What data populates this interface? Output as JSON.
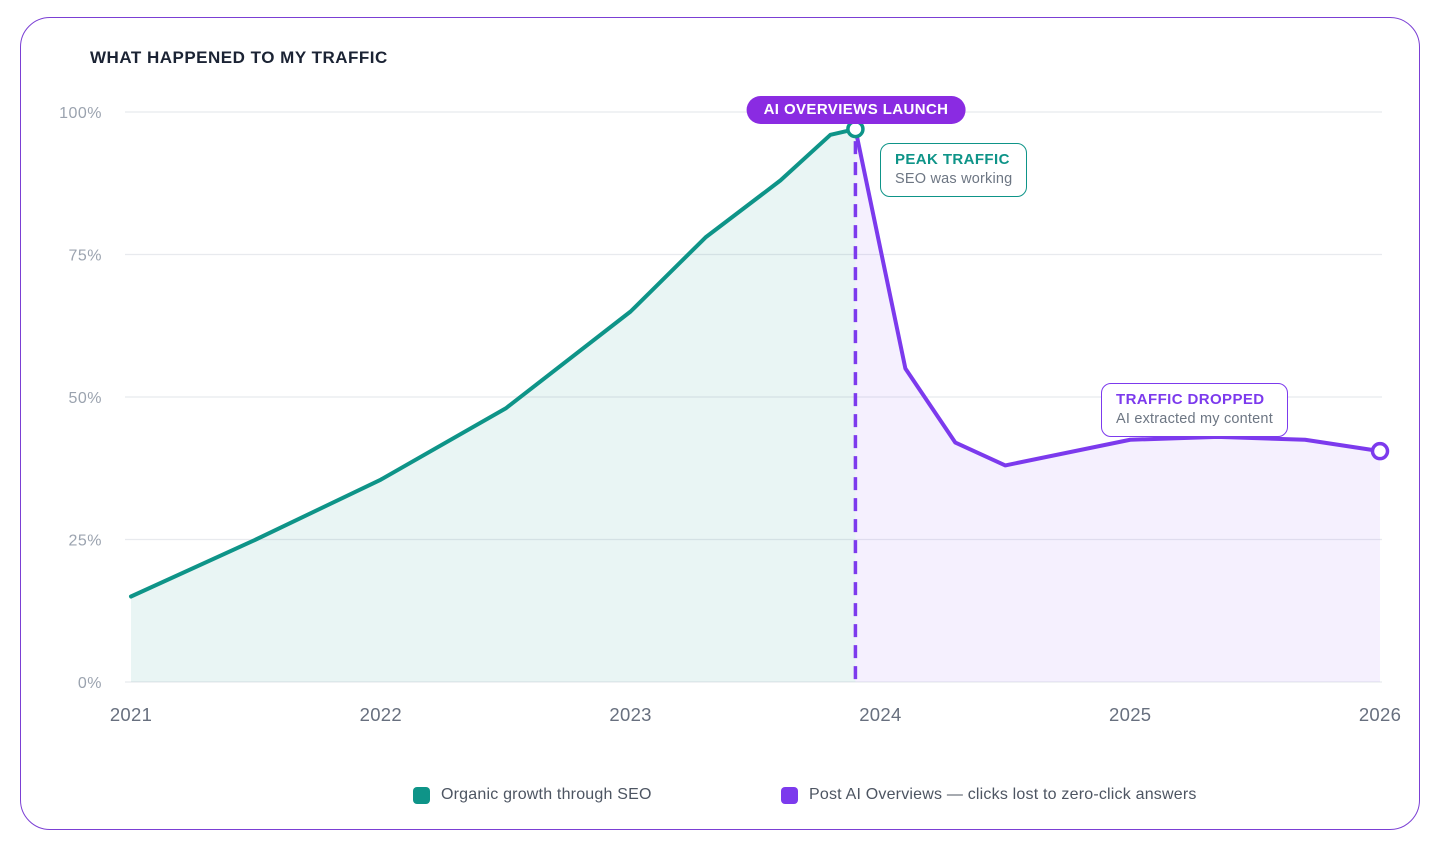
{
  "header": {
    "title": "WHAT HAPPENED TO MY TRAFFIC"
  },
  "badge": {
    "label": "AI OVERVIEWS LAUNCH"
  },
  "peak_note": {
    "title": "PEAK TRAFFIC",
    "subtitle": "SEO was working"
  },
  "drop_note": {
    "title": "TRAFFIC DROPPED",
    "subtitle": "AI extracted my content"
  },
  "legend": {
    "items": [
      {
        "label": "Organic growth through SEO",
        "color": "#0e9488"
      },
      {
        "label": "Post AI Overviews — clicks lost to zero-click answers",
        "color": "#7c3aed"
      }
    ]
  },
  "chart_data": {
    "type": "area",
    "title": "WHAT HAPPENED TO MY TRAFFIC",
    "xlabel": "",
    "ylabel": "",
    "x_ticks": [
      2021,
      2022,
      2023,
      2024,
      2025,
      2026
    ],
    "y_ticks": [
      0,
      25,
      50,
      75,
      100
    ],
    "y_tick_labels": [
      "0%",
      "25%",
      "50%",
      "75%",
      "100%"
    ],
    "xlim": [
      2021,
      2026
    ],
    "ylim": [
      0,
      100
    ],
    "grid": true,
    "unit": "%",
    "series": [
      {
        "name": "Organic growth through SEO",
        "color": "#0e9488",
        "fill": "rgba(14,148,136,0.09)",
        "points": [
          [
            2021.0,
            15
          ],
          [
            2021.5,
            25
          ],
          [
            2022.0,
            35.5
          ],
          [
            2022.5,
            48
          ],
          [
            2023.0,
            65
          ],
          [
            2023.3,
            78
          ],
          [
            2023.6,
            88
          ],
          [
            2023.8,
            96
          ],
          [
            2023.9,
            97
          ]
        ],
        "end_marker": true
      },
      {
        "name": "Post AI Overviews — clicks lost to zero-click answers",
        "color": "#7c3aed",
        "fill": "rgba(124,58,237,0.08)",
        "points": [
          [
            2023.9,
            97
          ],
          [
            2024.1,
            55
          ],
          [
            2024.3,
            42
          ],
          [
            2024.5,
            38
          ],
          [
            2025.0,
            42.5
          ],
          [
            2025.35,
            43
          ],
          [
            2025.7,
            42.5
          ],
          [
            2026.0,
            40.5
          ]
        ],
        "end_marker": true
      }
    ],
    "event_line": {
      "x": 2023.9,
      "label": "AI OVERVIEWS LAUNCH",
      "color": "#7c3aed",
      "style": "dashed"
    },
    "annotations": [
      {
        "x": 2023.9,
        "y": 97,
        "title": "PEAK TRAFFIC",
        "subtitle": "SEO was working",
        "color": "#0e9488"
      },
      {
        "x": 2025.0,
        "y": 43,
        "title": "TRAFFIC DROPPED",
        "subtitle": "AI extracted my content",
        "color": "#7c3aed"
      }
    ],
    "legend_position": "bottom",
    "colors": {
      "grid": "#e8eaee",
      "y_tick_text": "#9ba3af",
      "x_tick_text": "#676f7e",
      "title_text": "#1b2334",
      "card_border": "#7b3fd4"
    }
  }
}
